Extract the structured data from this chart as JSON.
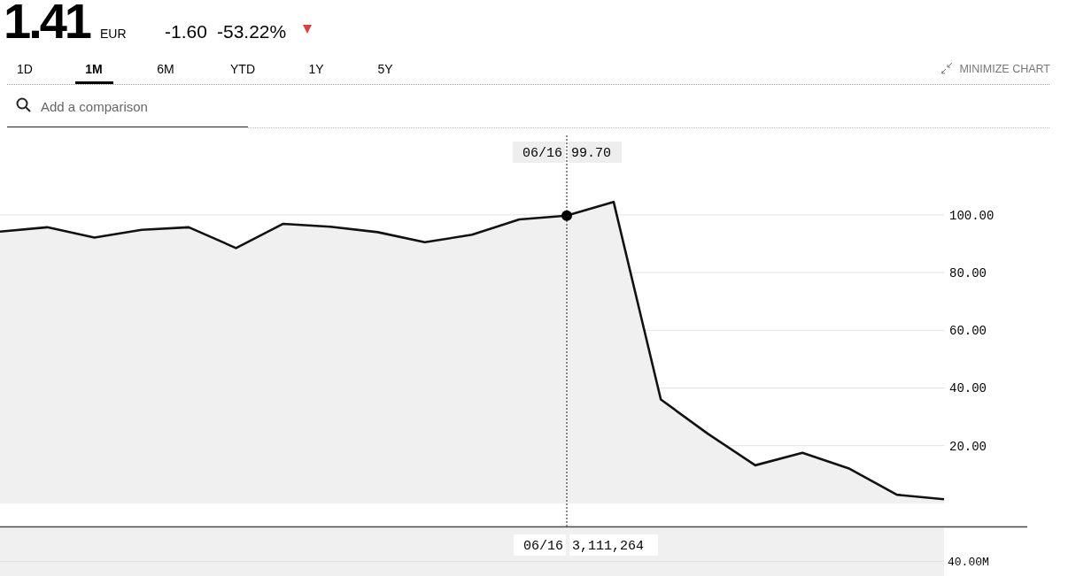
{
  "chart_data": [
    {
      "type": "area",
      "title": "1.41",
      "subtitle": "EUR",
      "annotations": [
        "-1.60",
        "-53.22%",
        "1D",
        "1M",
        "6M",
        "YTD",
        "1Y",
        "5Y",
        "MINIMIZE CHART",
        "Add a comparison",
        "06/16",
        "99.70"
      ],
      "categories": [
        null,
        null,
        null,
        null,
        null,
        null,
        null,
        null,
        null,
        null,
        null,
        null,
        null,
        null,
        null,
        null,
        null,
        null,
        null,
        null,
        null
      ],
      "series": [
        {
          "type": "area",
          "color": "#111111",
          "values": [
            94.2,
            95.7,
            92.1,
            94.8,
            95.7,
            88.5,
            96.9,
            95.9,
            94.0,
            90.5,
            93.1,
            98.4,
            99.7,
            104.5,
            36.0,
            24.1,
            13.2,
            17.5,
            12.0,
            3.0,
            1.41
          ]
        }
      ],
      "ylim": [
        -8,
        130
      ],
      "yticks": [
        {
          "value": 20,
          "label": "20.00"
        },
        {
          "value": 40,
          "label": "40.00"
        },
        {
          "value": 60,
          "label": "60.00"
        },
        {
          "value": 80,
          "label": "80.00"
        },
        {
          "value": 100,
          "label": "100.00"
        }
      ],
      "grid": "y",
      "tick_labels": "y"
    },
    {
      "type": "other",
      "annotations": [
        "06/16",
        "3,111,264",
        "40.00M"
      ]
    }
  ]
}
